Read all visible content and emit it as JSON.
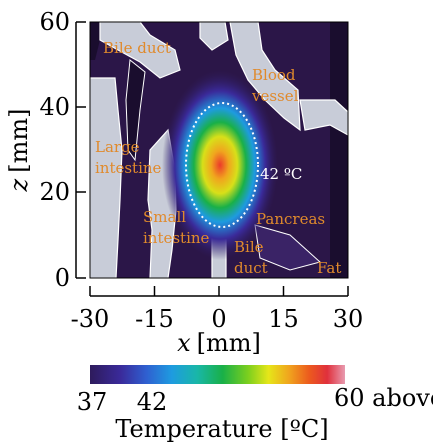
{
  "chart_data": {
    "type": "heatmap",
    "xlabel_var": "x",
    "xlabel_unit": "[mm]",
    "ylabel_var": "z",
    "ylabel_unit": "[mm]",
    "xlim": [
      -30,
      30
    ],
    "ylim": [
      0,
      60
    ],
    "x_ticks": [
      "-30",
      "-15",
      "0",
      "15",
      "30"
    ],
    "y_ticks": [
      "0",
      "20",
      "40",
      "60"
    ],
    "isotherm_label": "42 ºC",
    "organ_labels": {
      "bile_duct_top": "Bile duct",
      "blood_vessel_1": "Blood",
      "blood_vessel_2": "vessel",
      "large_intestine_1": "Large",
      "large_intestine_2": "intestine",
      "small_intestine_1": "Small",
      "small_intestine_2": "intestine",
      "pancreas": "Pancreas",
      "bile_duct_1": "Bile",
      "bile_duct_2": "duct",
      "fat": "Fat"
    },
    "colorbar": {
      "label": "Temperature [ºC]",
      "ticks": [
        "37",
        "42",
        "60 above"
      ],
      "range": [
        37,
        60
      ],
      "colors": [
        "#2e1b5c",
        "#3a2a9a",
        "#2f5fd0",
        "#1e9be0",
        "#19b7a8",
        "#19b048",
        "#7ccf1e",
        "#e6e619",
        "#f0a51e",
        "#ec5a1e",
        "#e0303c",
        "#e25c8a",
        "#e89bb0"
      ]
    },
    "heating_peak": {
      "x": 0,
      "z": 25,
      "value": 60
    }
  }
}
